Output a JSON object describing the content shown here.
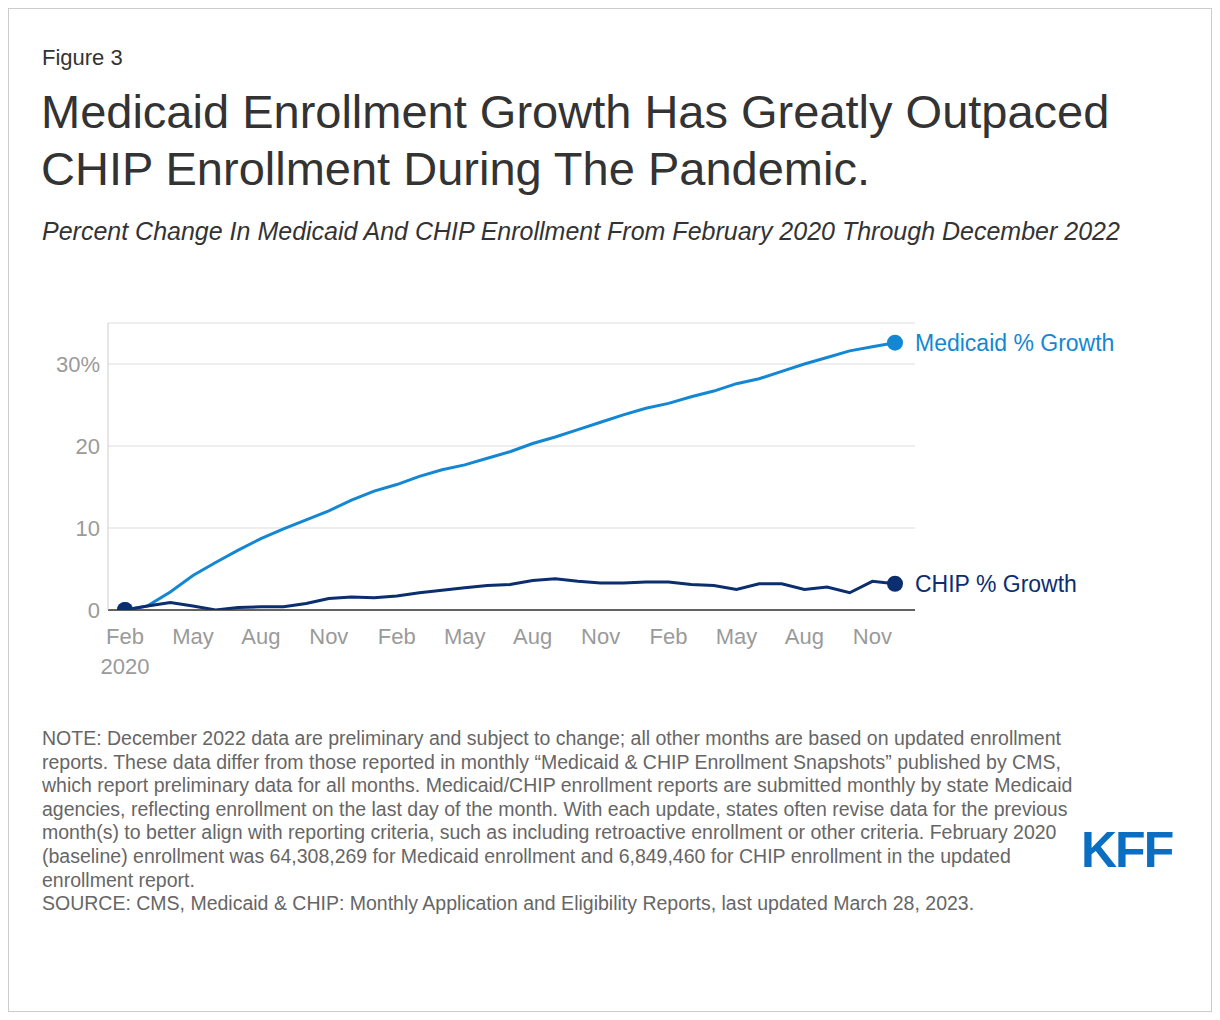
{
  "chart_data": {
    "type": "line",
    "figure_label": "Figure 3",
    "title": "Medicaid Enrollment Growth Has Greatly Outpaced CHIP Enrollment During The Pandemic.",
    "subtitle": "Percent Change In Medicaid And CHIP Enrollment From February 2020 Through December 2022",
    "categories": [
      "Feb\n2020",
      null,
      null,
      "May",
      null,
      null,
      "Aug",
      null,
      null,
      "Nov",
      null,
      null,
      "Feb",
      null,
      null,
      "May",
      null,
      null,
      "Aug",
      null,
      null,
      "Nov",
      null,
      null,
      "Feb",
      null,
      null,
      "May",
      null,
      null,
      "Aug",
      null,
      null,
      "Nov",
      null
    ],
    "series": [
      {
        "name": "Medicaid % Growth",
        "color": "#1487d4",
        "values": [
          0,
          0.5,
          2.2,
          4.2,
          5.8,
          7.3,
          8.7,
          9.9,
          11.0,
          12.1,
          13.4,
          14.5,
          15.3,
          16.3,
          17.1,
          17.7,
          18.5,
          19.3,
          20.3,
          21.1,
          22.0,
          22.9,
          23.8,
          24.6,
          25.2,
          26.0,
          26.7,
          27.6,
          28.2,
          29.1,
          30.0,
          30.8,
          31.6,
          32.1,
          32.6
        ]
      },
      {
        "name": "CHIP % Growth",
        "color": "#0b2e6e",
        "values": [
          0,
          0.5,
          0.9,
          0.5,
          0,
          0.3,
          0.4,
          0.4,
          0.8,
          1.4,
          1.6,
          1.5,
          1.7,
          2.1,
          2.4,
          2.7,
          3.0,
          3.1,
          3.6,
          3.8,
          3.5,
          3.3,
          3.3,
          3.4,
          3.4,
          3.1,
          3.0,
          2.5,
          3.2,
          3.2,
          2.5,
          2.8,
          2.1,
          3.5,
          3.2
        ]
      }
    ],
    "ylim": [
      0,
      35
    ],
    "yticks": [
      0,
      10,
      20,
      {
        "value": 30,
        "label": "30%"
      }
    ],
    "grid": true,
    "note": "NOTE: December 2022 data are preliminary and subject to change; all other months are based on updated enrollment reports. These data differ from those reported in monthly “Medicaid & CHIP Enrollment Snapshots” published by CMS, which report preliminary data for all months. Medicaid/CHIP enrollment reports are submitted monthly by state Medicaid agencies, reflecting enrollment on the last day of the month. With each update, states often revise data for the previous month(s) to better align with reporting criteria, such as including retroactive enrollment or other criteria. February 2020 (baseline) enrollment was 64,308,269 for Medicaid enrollment and 6,849,460 for CHIP enrollment in the updated enrollment report.",
    "source": "SOURCE: CMS, Medicaid & CHIP: Monthly Application and Eligibility Reports, last updated March 28, 2023.",
    "logo": "KFF"
  }
}
